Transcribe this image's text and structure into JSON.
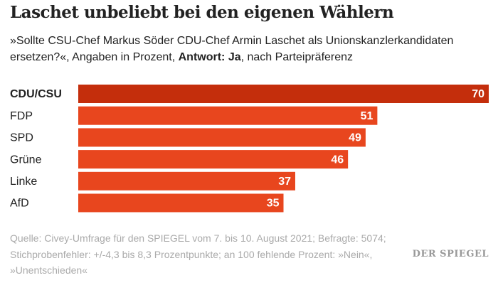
{
  "chart_data": {
    "type": "bar",
    "orientation": "horizontal",
    "title": "Laschet unbeliebt bei den eigenen Wählern",
    "subtitle": [
      "»Sollte CSU-Chef Markus Söder CDU-Chef Armin Laschet als Unionskanzlerkandidaten ersetzen?«, Angaben in Prozent, ",
      "Antwort: Ja",
      ", nach Parteipräferenz"
    ],
    "categories": [
      "CDU/CSU",
      "FDP",
      "SPD",
      "Grüne",
      "Linke",
      "AfD"
    ],
    "values": [
      70,
      51,
      49,
      46,
      37,
      35
    ],
    "colors": [
      "#c42e0c",
      "#e8461e",
      "#e8461e",
      "#e8461e",
      "#e8461e",
      "#e8461e"
    ],
    "source": "Quelle: Civey-Umfrage für den SPIEGEL vom 7. bis 10. August 2021; Befragte: 5074; Stichprobenfehler: +/-4,3 bis 8,3 Prozentpunkte; an 100 fehlende Prozent: »Nein«, »Unentschieden«",
    "logo": "DER SPIEGEL"
  }
}
